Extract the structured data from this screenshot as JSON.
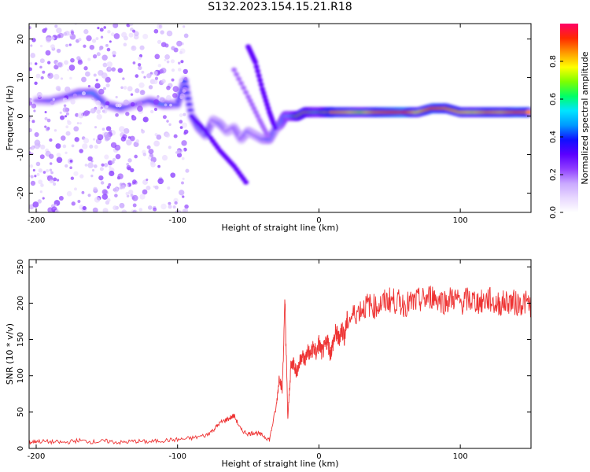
{
  "title": "S132.2023.154.15.21.R18",
  "chart_data": [
    {
      "type": "heatmap",
      "xlabel": "Height of straight line (km)",
      "ylabel": "Frequency (Hz)",
      "xlim": [
        -205,
        150
      ],
      "ylim": [
        -25,
        24
      ],
      "xticks": [
        -200,
        -100,
        0,
        100
      ],
      "yticks": [
        -20,
        -10,
        0,
        10,
        20
      ],
      "grid": false,
      "colorbar": {
        "label": "Normalized spectral amplitude",
        "range": [
          0.0,
          1.0
        ],
        "ticks": [
          0.0,
          0.2,
          0.4,
          0.6,
          0.8
        ],
        "colormap": [
          "#ffffff",
          "#e8d8ff",
          "#c9a8ff",
          "#8f3dff",
          "#5a00ff",
          "#1010ff",
          "#0099ff",
          "#00e5ff",
          "#00ff66",
          "#7dff00",
          "#ffff00",
          "#ff9900",
          "#ff2a00",
          "#ff0066"
        ]
      },
      "main_trace": [
        {
          "x": -200,
          "y": 4,
          "v": 0.25
        },
        {
          "x": -190,
          "y": 4,
          "v": 0.35
        },
        {
          "x": -180,
          "y": 5,
          "v": 0.3
        },
        {
          "x": -170,
          "y": 6,
          "v": 0.4
        },
        {
          "x": -160,
          "y": 6,
          "v": 0.45
        },
        {
          "x": -150,
          "y": 3,
          "v": 0.35
        },
        {
          "x": -140,
          "y": 2,
          "v": 0.4
        },
        {
          "x": -130,
          "y": 3,
          "v": 0.3
        },
        {
          "x": -120,
          "y": 4,
          "v": 0.35
        },
        {
          "x": -110,
          "y": 3,
          "v": 0.45
        },
        {
          "x": -100,
          "y": 3,
          "v": 0.35
        },
        {
          "x": -95,
          "y": 9,
          "v": 0.4
        },
        {
          "x": -90,
          "y": 0,
          "v": 0.3
        },
        {
          "x": -85,
          "y": -3,
          "v": 0.4
        },
        {
          "x": -80,
          "y": -5,
          "v": 0.35
        },
        {
          "x": -75,
          "y": -1,
          "v": 0.3
        },
        {
          "x": -70,
          "y": -2,
          "v": 0.35
        },
        {
          "x": -65,
          "y": -4,
          "v": 0.3
        },
        {
          "x": -60,
          "y": -3,
          "v": 0.3
        },
        {
          "x": -55,
          "y": -6,
          "v": 0.3
        },
        {
          "x": -50,
          "y": -4,
          "v": 0.35
        },
        {
          "x": -45,
          "y": -5,
          "v": 0.3
        },
        {
          "x": -40,
          "y": -6,
          "v": 0.35
        },
        {
          "x": -35,
          "y": -6,
          "v": 0.4
        },
        {
          "x": -30,
          "y": -3,
          "v": 0.35
        },
        {
          "x": -27,
          "y": -2,
          "v": 0.45
        },
        {
          "x": -24,
          "y": 0,
          "v": 0.55
        },
        {
          "x": -20,
          "y": 0,
          "v": 0.5
        },
        {
          "x": -15,
          "y": 0,
          "v": 0.7
        },
        {
          "x": -10,
          "y": 1,
          "v": 0.75
        },
        {
          "x": -5,
          "y": 1,
          "v": 0.65
        },
        {
          "x": 0,
          "y": 1,
          "v": 0.6
        },
        {
          "x": 5,
          "y": 1,
          "v": 0.75
        },
        {
          "x": 10,
          "y": 1,
          "v": 0.85
        },
        {
          "x": 20,
          "y": 1,
          "v": 0.8
        },
        {
          "x": 30,
          "y": 1,
          "v": 0.7
        },
        {
          "x": 40,
          "y": 1,
          "v": 0.85
        },
        {
          "x": 50,
          "y": 1,
          "v": 0.9
        },
        {
          "x": 60,
          "y": 1,
          "v": 0.95
        },
        {
          "x": 70,
          "y": 1,
          "v": 0.75
        },
        {
          "x": 80,
          "y": 2,
          "v": 0.9
        },
        {
          "x": 90,
          "y": 2,
          "v": 0.85
        },
        {
          "x": 100,
          "y": 1,
          "v": 0.8
        },
        {
          "x": 110,
          "y": 1,
          "v": 0.75
        },
        {
          "x": 120,
          "y": 1,
          "v": 0.85
        },
        {
          "x": 130,
          "y": 1,
          "v": 0.8
        },
        {
          "x": 140,
          "y": 1,
          "v": 0.9
        },
        {
          "x": 150,
          "y": 1,
          "v": 0.85
        }
      ],
      "branches": [
        {
          "points": [
            {
              "x": -90,
              "y": 0
            },
            {
              "x": -80,
              "y": -4
            },
            {
              "x": -70,
              "y": -9
            },
            {
              "x": -60,
              "y": -13
            },
            {
              "x": -50,
              "y": -18
            }
          ],
          "v": 0.3
        },
        {
          "points": [
            {
              "x": -50,
              "y": 18
            },
            {
              "x": -45,
              "y": 14
            },
            {
              "x": -40,
              "y": 7
            },
            {
              "x": -35,
              "y": 1
            },
            {
              "x": -30,
              "y": -4
            }
          ],
          "v": 0.3
        },
        {
          "points": [
            {
              "x": -60,
              "y": 12
            },
            {
              "x": -50,
              "y": 5
            },
            {
              "x": -42,
              "y": -1
            },
            {
              "x": -35,
              "y": -6
            }
          ],
          "v": 0.2
        }
      ]
    },
    {
      "type": "line",
      "xlabel": "Height of straight line (km)",
      "ylabel": "SNR (10 * v/v)",
      "xlim": [
        -205,
        150
      ],
      "ylim": [
        0,
        260
      ],
      "xticks": [
        -200,
        -100,
        0,
        100
      ],
      "yticks": [
        0,
        50,
        100,
        150,
        200,
        250
      ],
      "grid": false,
      "color": "#ee3333",
      "series": [
        {
          "x": [
            -205,
            -200,
            -190,
            -180,
            -170,
            -160,
            -150,
            -140,
            -130,
            -120,
            -110,
            -100,
            -90,
            -80,
            -75,
            -70,
            -65,
            -60,
            -55,
            -50,
            -45,
            -40,
            -35,
            -30,
            -28,
            -26,
            -24,
            -22,
            -20,
            -18,
            -16,
            -14,
            -12,
            -10,
            -8,
            -6,
            -4,
            -2,
            0,
            2,
            4,
            6,
            8,
            10,
            12,
            14,
            16,
            18,
            20,
            25,
            30,
            35,
            40,
            45,
            50,
            55,
            60,
            65,
            70,
            75,
            80,
            85,
            90,
            95,
            100,
            105,
            110,
            115,
            120,
            125,
            130,
            135,
            140,
            145,
            150
          ],
          "y": [
            8,
            10,
            9,
            8,
            11,
            9,
            10,
            8,
            10,
            9,
            11,
            12,
            14,
            18,
            25,
            35,
            40,
            45,
            25,
            20,
            22,
            18,
            12,
            60,
            100,
            80,
            200,
            40,
            110,
            120,
            105,
            115,
            130,
            120,
            135,
            128,
            140,
            130,
            145,
            132,
            138,
            150,
            130,
            145,
            160,
            150,
            165,
            155,
            175,
            185,
            192,
            198,
            195,
            200,
            205,
            202,
            198,
            200,
            203,
            205,
            210,
            205,
            202,
            208,
            200,
            205,
            203,
            201,
            206,
            198,
            200,
            203,
            199,
            201,
            198
          ]
        }
      ]
    }
  ]
}
